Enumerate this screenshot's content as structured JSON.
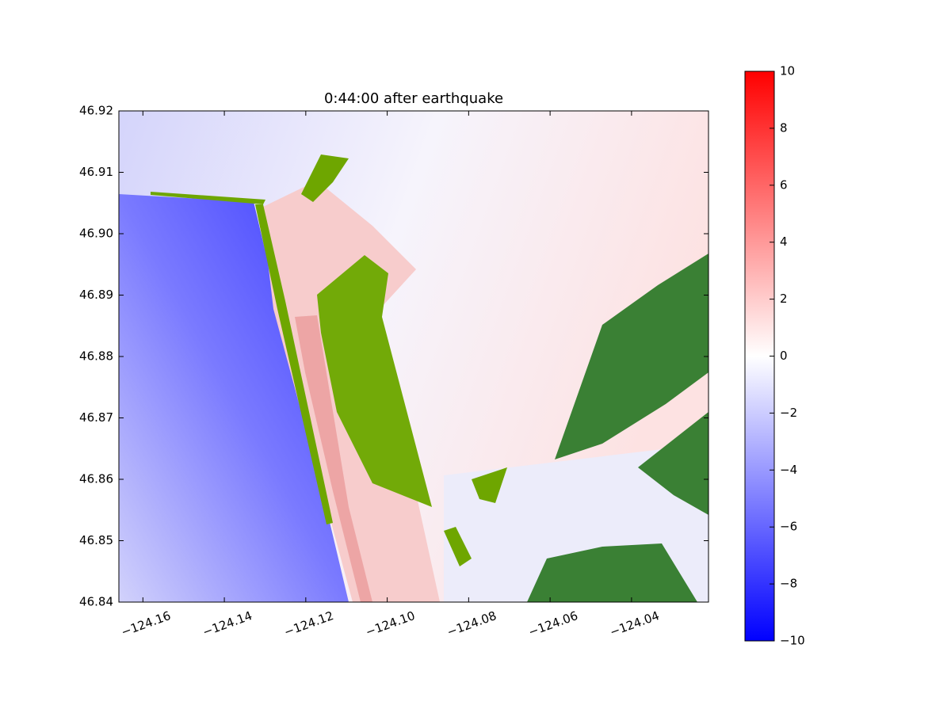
{
  "chart_data": {
    "type": "image",
    "title": "0:44:00 after earthquake",
    "xlim": [
      -124.1659,
      -124.0211
    ],
    "ylim": [
      46.84,
      46.92
    ],
    "xticks": [
      {
        "value": -124.16,
        "label": "−124.16"
      },
      {
        "value": -124.14,
        "label": "−124.14"
      },
      {
        "value": -124.12,
        "label": "−124.12"
      },
      {
        "value": -124.1,
        "label": "−124.10"
      },
      {
        "value": -124.08,
        "label": "−124.08"
      },
      {
        "value": -124.06,
        "label": "−124.06"
      },
      {
        "value": -124.04,
        "label": "−124.04"
      }
    ],
    "yticks": [
      46.84,
      46.85,
      46.86,
      46.87,
      46.88,
      46.89,
      {
        "value": 46.9,
        "label": "46.90"
      },
      46.91,
      46.92
    ],
    "colormap": "bwr",
    "clim": [
      -10,
      10
    ],
    "cticks": [
      {
        "value": -10,
        "label": "−10"
      },
      {
        "value": -8,
        "label": "−8"
      },
      {
        "value": -6,
        "label": "−6"
      },
      {
        "value": -4,
        "label": "−4"
      },
      {
        "value": -2,
        "label": "−2"
      },
      0,
      2,
      4,
      6,
      8,
      10
    ]
  }
}
